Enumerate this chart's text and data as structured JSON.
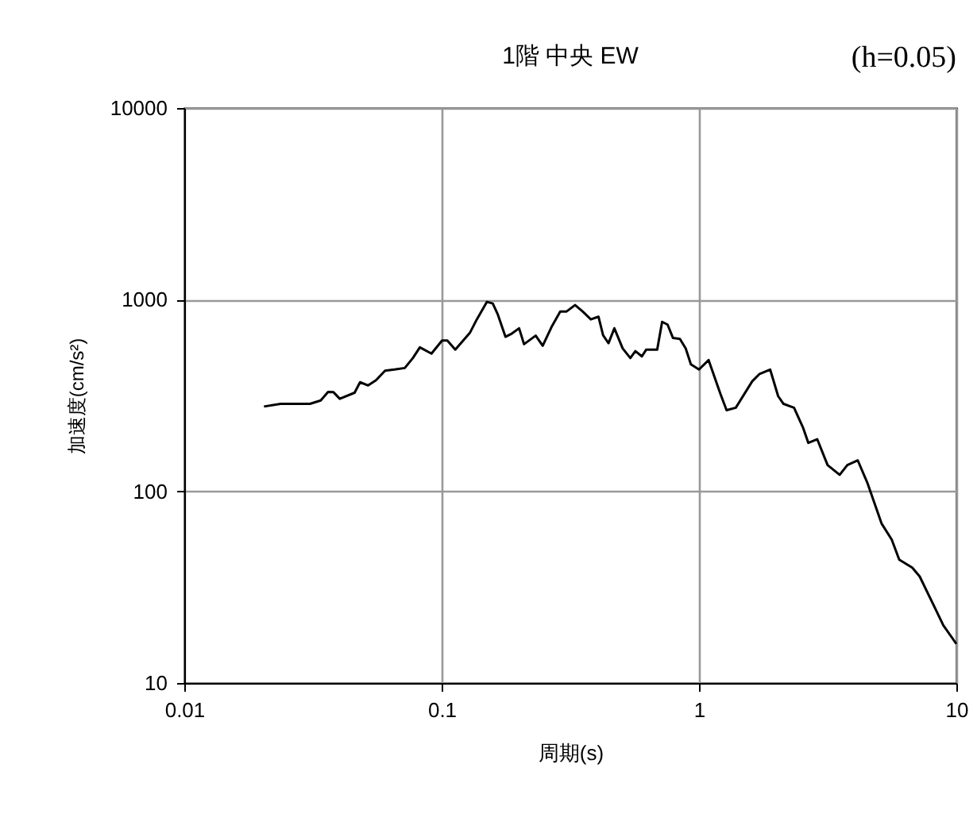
{
  "chart_data": {
    "type": "line",
    "title": "1階 中央 EW",
    "annotations": [
      "(h=0.05)"
    ],
    "xlabel": "周期(s)",
    "ylabel": "加速度(cm/s²)",
    "log": "xy",
    "grid": true,
    "xlim": [
      0.01,
      10
    ],
    "xticks": [
      0.01,
      0.1,
      1,
      10
    ],
    "ylim": [
      10,
      10000
    ],
    "yticks": [
      10,
      100,
      1000,
      10000
    ],
    "series": [
      {
        "color": "#000000",
        "x": [
          0.0204,
          0.0237,
          0.0308,
          0.0339,
          0.0362,
          0.038,
          0.0402,
          0.0459,
          0.0482,
          0.0518,
          0.0556,
          0.0603,
          0.0656,
          0.0719,
          0.0773,
          0.0823,
          0.0913,
          0.1004,
          0.1052,
          0.113,
          0.129,
          0.137,
          0.15,
          0.158,
          0.165,
          0.177,
          0.186,
          0.2,
          0.209,
          0.232,
          0.247,
          0.267,
          0.289,
          0.306,
          0.33,
          0.353,
          0.38,
          0.407,
          0.424,
          0.445,
          0.469,
          0.505,
          0.541,
          0.566,
          0.6,
          0.624,
          0.688,
          0.719,
          0.755,
          0.792,
          0.843,
          0.888,
          0.93,
          1.0,
          1.09,
          1.21,
          1.28,
          1.39,
          1.61,
          1.72,
          1.89,
          2.03,
          2.13,
          2.34,
          2.54,
          2.66,
          2.88,
          3.16,
          3.52,
          3.77,
          4.14,
          4.52,
          5.12,
          5.61,
          6.0,
          6.74,
          7.2,
          8.1,
          8.9,
          10
        ],
        "values": [
          277,
          286,
          286,
          298,
          330,
          329,
          304,
          327,
          371,
          357,
          380,
          426,
          432,
          440,
          496,
          564,
          523,
          612,
          612,
          549,
          674,
          789,
          974,
          955,
          842,
          640,
          661,
          709,
          586,
          649,
          575,
          718,
          868,
          868,
          937,
          868,
          789,
          815,
          652,
          593,
          709,
          557,
          496,
          539,
          506,
          549,
          549,
          766,
          741,
          632,
          624,
          557,
          460,
          432,
          484,
          324,
          265,
          273,
          375,
          410,
          432,
          314,
          286,
          273,
          214,
          179,
          187,
          137,
          122,
          137,
          145,
          110,
          68,
          56,
          44,
          40,
          36,
          26,
          20,
          16
        ]
      }
    ]
  }
}
